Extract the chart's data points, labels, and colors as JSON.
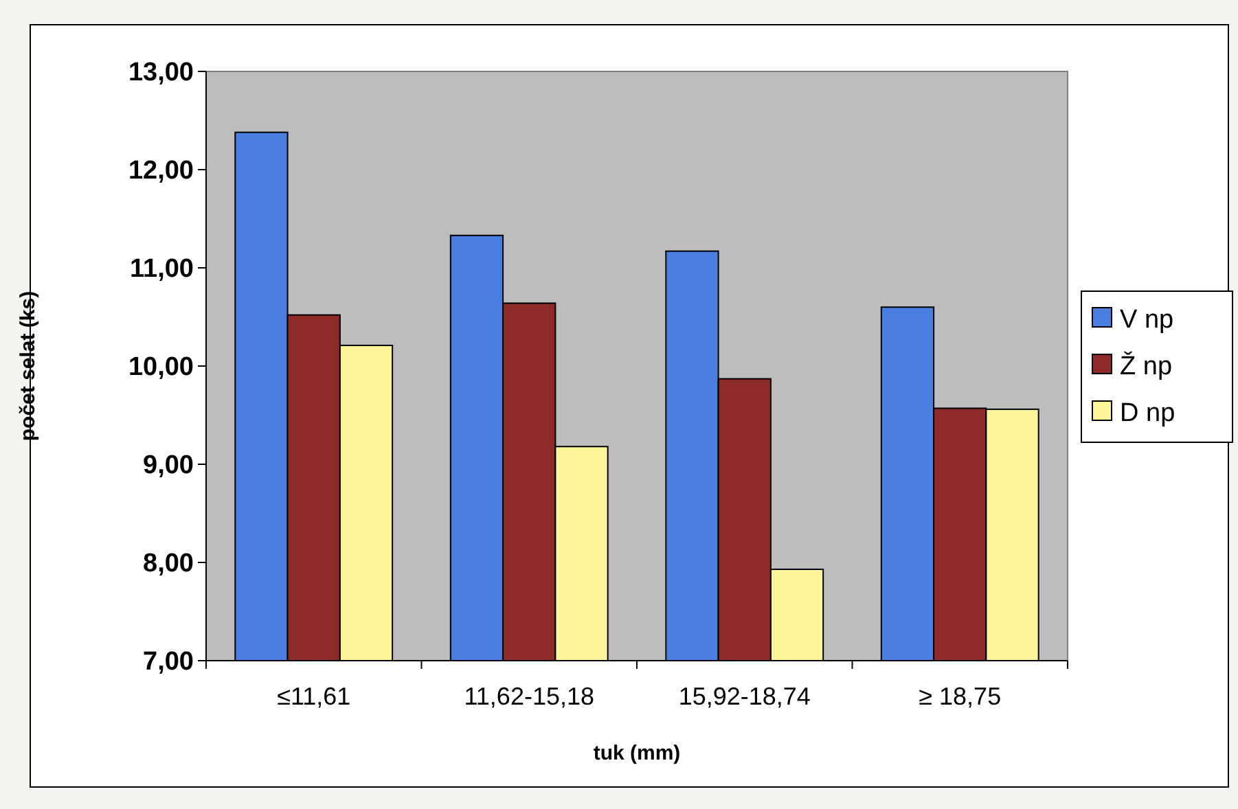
{
  "chart_data": {
    "type": "bar",
    "xlabel": "tuk (mm)",
    "ylabel": "počet selat (ks)",
    "categories": [
      "≤11,61",
      "11,62-15,18",
      "15,92-18,74",
      "≥ 18,75"
    ],
    "series": [
      {
        "name": "V np",
        "color": "#4a7fe0",
        "values": [
          12.38,
          11.33,
          11.17,
          10.6
        ]
      },
      {
        "name": "Ž np",
        "color": "#8e2a2a",
        "values": [
          10.52,
          10.64,
          9.87,
          9.57
        ]
      },
      {
        "name": "D np",
        "color": "#fcf59a",
        "values": [
          10.21,
          9.18,
          7.93,
          9.56
        ]
      }
    ],
    "ylim": [
      7,
      13
    ],
    "yticks": [
      {
        "value": 7,
        "label": "7,00"
      },
      {
        "value": 8,
        "label": "8,00"
      },
      {
        "value": 9,
        "label": "9,00"
      },
      {
        "value": 10,
        "label": "10,00"
      },
      {
        "value": 11,
        "label": "11,00"
      },
      {
        "value": 12,
        "label": "12,00"
      },
      {
        "value": 13,
        "label": "13,00"
      }
    ],
    "grid": false,
    "legend": "right"
  }
}
